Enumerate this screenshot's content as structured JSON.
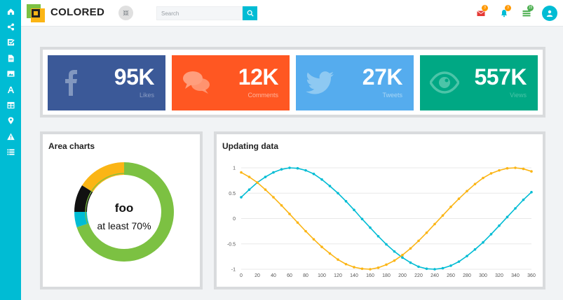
{
  "app": {
    "name": "COLORED"
  },
  "sidebar": {
    "items": [
      {
        "icon": "home-icon"
      },
      {
        "icon": "share-nodes-icon"
      },
      {
        "icon": "checkbox-icon"
      },
      {
        "icon": "file-icon"
      },
      {
        "icon": "image-icon"
      },
      {
        "icon": "font-icon"
      },
      {
        "icon": "table-icon"
      },
      {
        "icon": "map-marker-icon"
      },
      {
        "icon": "warning-icon"
      },
      {
        "icon": "list-icon"
      }
    ]
  },
  "header": {
    "search": {
      "placeholder": "Search",
      "value": ""
    },
    "notifications": [
      {
        "icon": "envelope-icon",
        "badge": "3",
        "color": "#e53935",
        "badge_color": "#ff9800"
      },
      {
        "icon": "bell-icon",
        "badge": "3",
        "color": "#00bcd4",
        "badge_color": "#ff9800"
      },
      {
        "icon": "tasks-icon",
        "badge": "15",
        "color": "#4caf50",
        "badge_color": "#4caf50"
      }
    ]
  },
  "stats": [
    {
      "value": "95K",
      "label": "Likes",
      "icon": "facebook-icon",
      "color": "#3b5998"
    },
    {
      "value": "12K",
      "label": "Comments",
      "icon": "comments-icon",
      "color": "#ff5722"
    },
    {
      "value": "27K",
      "label": "Tweets",
      "icon": "twitter-icon",
      "color": "#55acee"
    },
    {
      "value": "557K",
      "label": "Views",
      "icon": "eye-icon",
      "color": "#00a884"
    }
  ],
  "area_panel": {
    "title": "Area charts",
    "chart_data": {
      "type": "pie",
      "center_title": "foo",
      "center_subtitle": "at least 70%",
      "slices": [
        {
          "value": 70,
          "color": "#7cc142"
        },
        {
          "value": 5,
          "color": "#00bcd4"
        },
        {
          "value": 9,
          "color": "#111111"
        },
        {
          "value": 16,
          "color": "#fbb515"
        }
      ]
    }
  },
  "updating_panel": {
    "title": "Updating data",
    "chart_data": {
      "type": "line",
      "x": [
        0,
        10,
        20,
        30,
        40,
        50,
        60,
        70,
        80,
        90,
        100,
        110,
        120,
        130,
        140,
        150,
        160,
        170,
        180,
        190,
        200,
        210,
        220,
        230,
        240,
        250,
        260,
        270,
        280,
        290,
        300,
        310,
        320,
        330,
        340,
        350,
        360
      ],
      "xticks": [
        0,
        20,
        40,
        60,
        80,
        100,
        120,
        140,
        160,
        180,
        200,
        220,
        240,
        260,
        280,
        300,
        320,
        340,
        360
      ],
      "yticks": [
        1,
        0.5,
        0,
        -0.5,
        -1
      ],
      "xlim": [
        0,
        360
      ],
      "ylim": [
        -1,
        1
      ],
      "grid": true,
      "series": [
        {
          "color": "#00bcd4",
          "values": [
            0.42,
            0.57,
            0.71,
            0.82,
            0.91,
            0.97,
            1.0,
            0.99,
            0.95,
            0.88,
            0.77,
            0.64,
            0.5,
            0.34,
            0.17,
            -0.01,
            -0.18,
            -0.35,
            -0.51,
            -0.65,
            -0.77,
            -0.87,
            -0.95,
            -0.99,
            -1.0,
            -0.98,
            -0.93,
            -0.85,
            -0.74,
            -0.61,
            -0.47,
            -0.31,
            -0.14,
            0.03,
            0.2,
            0.37,
            0.52
          ]
        },
        {
          "color": "#fbb515",
          "values": [
            0.91,
            0.82,
            0.71,
            0.57,
            0.42,
            0.26,
            0.09,
            -0.08,
            -0.25,
            -0.41,
            -0.56,
            -0.69,
            -0.81,
            -0.9,
            -0.96,
            -0.99,
            -1.0,
            -0.97,
            -0.91,
            -0.83,
            -0.72,
            -0.59,
            -0.44,
            -0.28,
            -0.11,
            0.06,
            0.23,
            0.39,
            0.54,
            0.68,
            0.8,
            0.89,
            0.95,
            0.99,
            1.0,
            0.98,
            0.93
          ]
        }
      ]
    }
  }
}
